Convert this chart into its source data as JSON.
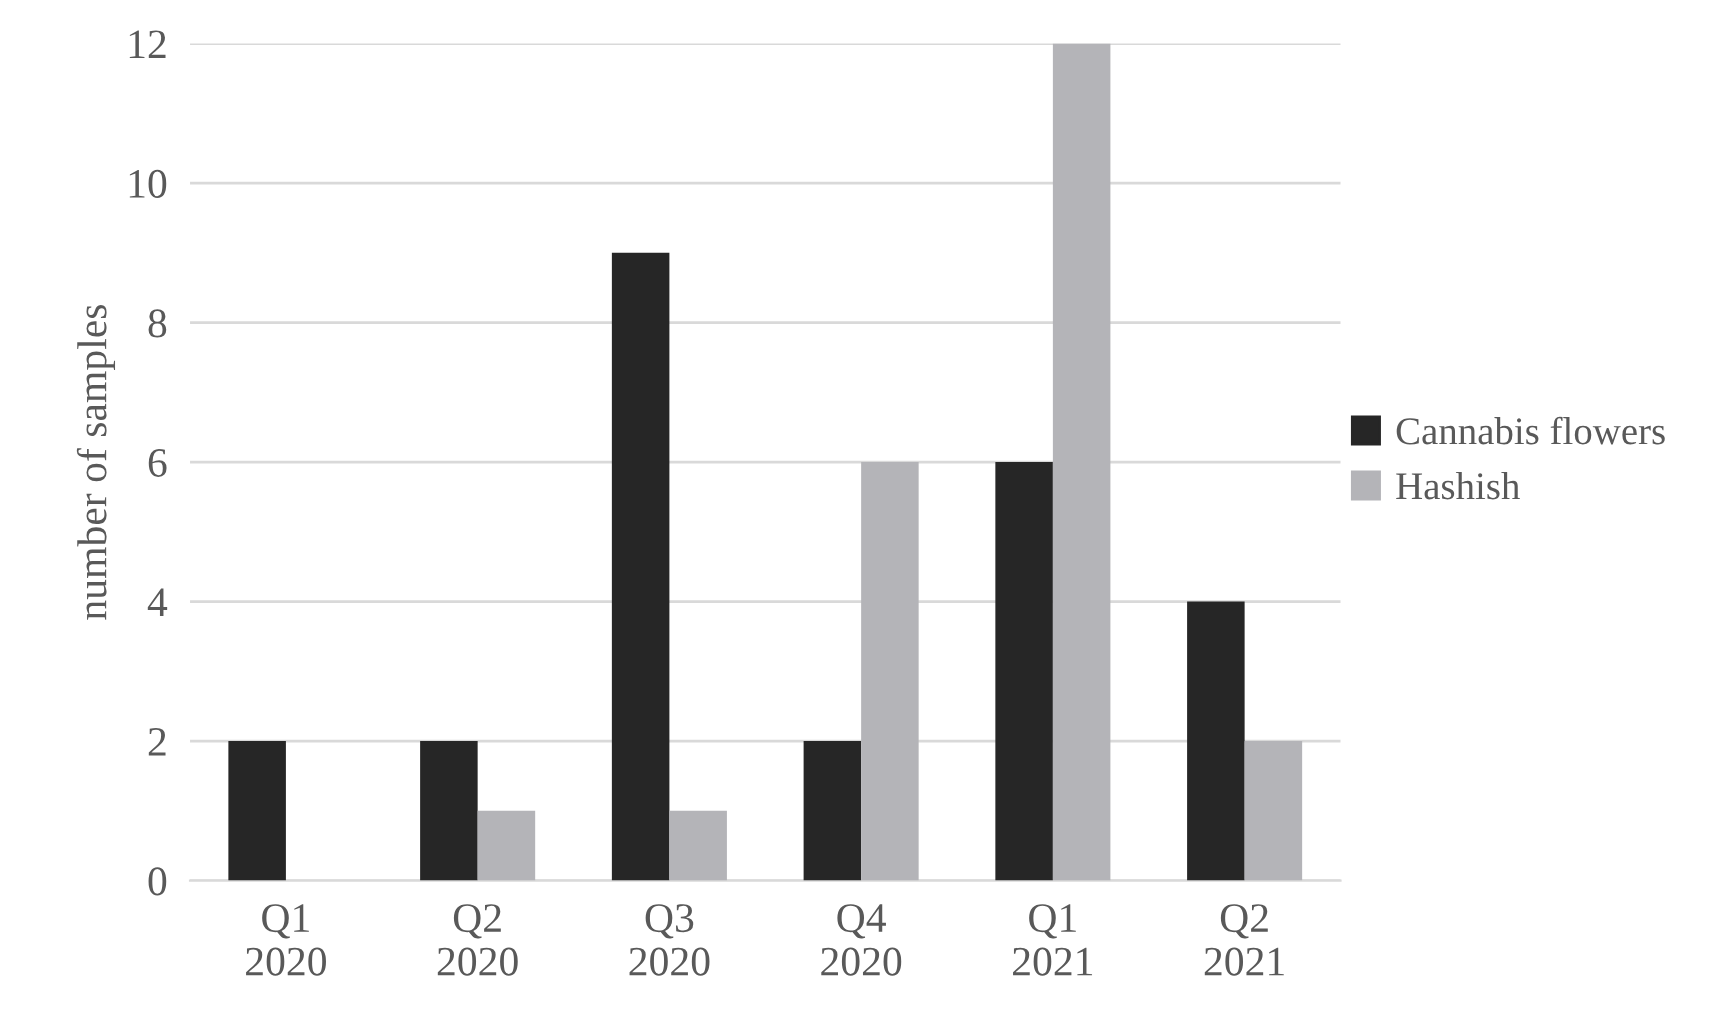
{
  "chart_data": {
    "type": "bar",
    "ylabel": "number of samples",
    "categories": [
      "Q1\n2020",
      "Q2\n2020",
      "Q3\n2020",
      "Q4\n2020",
      "Q1\n2021",
      "Q2\n2021"
    ],
    "series": [
      {
        "name": "Cannabis flowers",
        "color": "#262626",
        "values": [
          2,
          2,
          9,
          2,
          6,
          4
        ]
      },
      {
        "name": "Hashish",
        "color": "#b4b4b8",
        "values": [
          0,
          1,
          1,
          6,
          12,
          2
        ]
      }
    ],
    "ylim": [
      0,
      12
    ],
    "yticks": [
      0,
      2,
      4,
      6,
      8,
      10,
      12
    ],
    "grid": "y",
    "legend": "right"
  }
}
